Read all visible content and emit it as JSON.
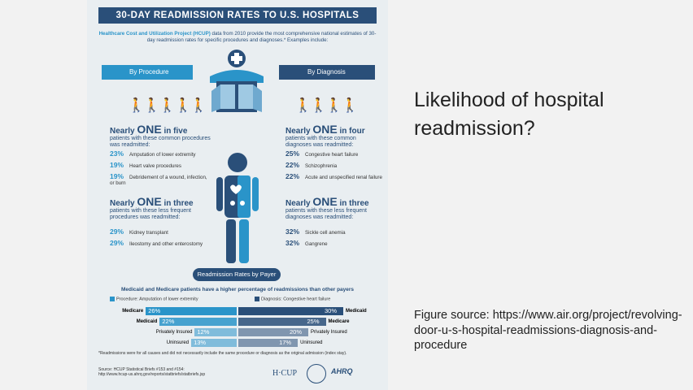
{
  "infographic": {
    "title": "30-DAY READMISSION RATES TO U.S. HOSPITALS",
    "intro_highlight": "Healthcare Cost and Utilization Project (HCUP)",
    "intro_rest": " data from 2010 provide the most comprehensive national estimates of 30-day readmission rates for specific procedures and diagnoses.* Examples include:",
    "by_procedure": "By Procedure",
    "by_diagnosis": "By Diagnosis",
    "proc_common": {
      "head_pre": "Nearly ",
      "head_num": "ONE",
      "head_post": " in five",
      "sub": "patients with these common procedures was readmitted:",
      "items": [
        {
          "pct": "23%",
          "label": "Amputation of lower extremity"
        },
        {
          "pct": "19%",
          "label": "Heart valve procedures"
        },
        {
          "pct": "19%",
          "label": "Debridement of a wound, infection, or burn"
        }
      ]
    },
    "diag_common": {
      "head_pre": "Nearly ",
      "head_num": "ONE",
      "head_post": " in four",
      "sub": "patients with these common diagnoses was readmitted:",
      "items": [
        {
          "pct": "25%",
          "label": "Congestive heart failure"
        },
        {
          "pct": "22%",
          "label": "Schizophrenia"
        },
        {
          "pct": "22%",
          "label": "Acute and unspecified renal failure"
        }
      ]
    },
    "proc_less": {
      "head_pre": "Nearly ",
      "head_num": "ONE",
      "head_post": " in three",
      "sub": "patients with these less frequent procedures was readmitted:",
      "items": [
        {
          "pct": "29%",
          "label": "Kidney transplant"
        },
        {
          "pct": "29%",
          "label": "Ileostomy and other enterostomy"
        }
      ]
    },
    "diag_less": {
      "head_pre": "Nearly ",
      "head_num": "ONE",
      "head_post": " in three",
      "sub": "patients with these less frequent diagnoses was readmitted:",
      "items": [
        {
          "pct": "32%",
          "label": "Sickle cell anemia"
        },
        {
          "pct": "32%",
          "label": "Gangrene"
        }
      ]
    },
    "payer_title": "Readmission Rates by Payer",
    "payer_sub": "Medicaid and Medicare patients have a higher percentage of readmissions than other payers",
    "legend_procedure": "Procedure: Amputation of lower extremity",
    "legend_diagnosis": "Diagnosis: Congestive heart failure",
    "payers_left": [
      {
        "label": "Medicare",
        "value": "26%",
        "num": 26
      },
      {
        "label": "Medicaid",
        "value": "22%",
        "num": 22
      },
      {
        "label": "Privately Insured",
        "value": "12%",
        "num": 12
      },
      {
        "label": "Uninsured",
        "value": "13%",
        "num": 13
      }
    ],
    "payers_right": [
      {
        "label": "Medicaid",
        "value": "30%",
        "num": 30
      },
      {
        "label": "Medicare",
        "value": "25%",
        "num": 25
      },
      {
        "label": "Privately Insured",
        "value": "20%",
        "num": 20
      },
      {
        "label": "Uninsured",
        "value": "17%",
        "num": 17
      }
    ],
    "footnote": "*Readmissions were for all causes and did not necessarily include the same procedure or diagnosis as the original admission (index stay).",
    "source_line1": "Source: HCUP Statistical Briefs #153 and #154:",
    "source_line2": "http://www.hcup-us.ahrq.gov/reports/statbriefs/statbriefs.jsp",
    "logo_hcup": "H·CUP",
    "logo_ahrq": "AHRQ"
  },
  "slide": {
    "question": "Likelihood of hospital readmission?",
    "figure_source": "Figure source: https://www.air.org/project/revolving-door-u-s-hospital-readmissions-diagnosis-and-procedure",
    "colors": {
      "light_blue": "#2a94c9",
      "dark_blue": "#2a4f79"
    }
  }
}
